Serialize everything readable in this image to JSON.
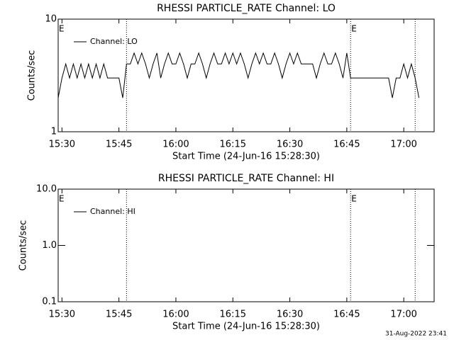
{
  "chart_data": [
    {
      "type": "line",
      "title": "RHESSI PARTICLE_RATE Channel: LO",
      "xlabel": "Start Time (24-Jun-16 15:28:30)",
      "ylabel": "Counts/sec",
      "x": [
        "15:29",
        "15:30",
        "15:31",
        "15:32",
        "15:33",
        "15:34",
        "15:35",
        "15:36",
        "15:37",
        "15:38",
        "15:39",
        "15:40",
        "15:41",
        "15:42",
        "15:43",
        "15:44",
        "15:45",
        "15:46",
        "15:47",
        "15:48",
        "15:49",
        "15:50",
        "15:51",
        "15:52",
        "15:53",
        "15:54",
        "15:55",
        "15:56",
        "15:57",
        "15:58",
        "15:59",
        "16:00",
        "16:01",
        "16:02",
        "16:03",
        "16:04",
        "16:05",
        "16:06",
        "16:07",
        "16:08",
        "16:09",
        "16:10",
        "16:11",
        "16:12",
        "16:13",
        "16:14",
        "16:15",
        "16:16",
        "16:17",
        "16:18",
        "16:19",
        "16:20",
        "16:21",
        "16:22",
        "16:23",
        "16:24",
        "16:25",
        "16:26",
        "16:27",
        "16:28",
        "16:29",
        "16:30",
        "16:31",
        "16:32",
        "16:33",
        "16:34",
        "16:35",
        "16:36",
        "16:37",
        "16:38",
        "16:39",
        "16:40",
        "16:41",
        "16:42",
        "16:43",
        "16:44",
        "16:45",
        "16:46",
        "16:47",
        "16:48",
        "16:49",
        "16:50",
        "16:51",
        "16:52",
        "16:53",
        "16:54",
        "16:55",
        "16:56",
        "16:57",
        "16:58",
        "16:59",
        "17:00",
        "17:01",
        "17:02",
        "17:03",
        "17:04"
      ],
      "series": [
        {
          "name": "Channel: LO",
          "color": "#000000",
          "values": [
            2,
            3,
            4,
            3,
            4,
            3,
            4,
            3,
            4,
            3,
            4,
            3,
            4,
            3,
            3,
            3,
            3,
            2,
            4,
            4,
            5,
            4,
            5,
            4,
            3,
            4,
            5,
            3,
            4,
            5,
            4,
            4,
            5,
            4,
            3,
            4,
            4,
            5,
            4,
            3,
            4,
            5,
            4,
            4,
            5,
            4,
            5,
            4,
            5,
            4,
            3,
            4,
            5,
            4,
            5,
            4,
            4,
            5,
            4,
            3,
            4,
            5,
            4,
            5,
            4,
            4,
            4,
            4,
            3,
            4,
            5,
            4,
            4,
            5,
            4,
            3,
            5,
            3,
            3,
            3,
            3,
            3,
            3,
            3,
            3,
            3,
            3,
            3,
            2,
            3,
            3,
            4,
            3,
            4,
            3,
            2
          ]
        }
      ],
      "xlim": [
        "15:29",
        "17:08"
      ],
      "xticks": [
        "15:30",
        "15:45",
        "16:00",
        "16:15",
        "16:30",
        "16:45",
        "17:00"
      ],
      "ylim": [
        1,
        10
      ],
      "yticks": [
        1,
        10
      ],
      "log_y": true,
      "events": [
        "15:47",
        "16:46",
        "17:03"
      ],
      "annotations": [
        {
          "x": "15:29",
          "label": "E"
        },
        {
          "x": "16:46",
          "label": "E"
        }
      ]
    },
    {
      "type": "line",
      "title": "RHESSI PARTICLE_RATE Channel: HI",
      "xlabel": "Start Time (24-Jun-16 15:28:30)",
      "ylabel": "Counts/sec",
      "x": [],
      "series": [
        {
          "name": "Channel: HI",
          "color": "#000000",
          "values": []
        }
      ],
      "xlim": [
        "15:29",
        "17:08"
      ],
      "xticks": [
        "15:30",
        "15:45",
        "16:00",
        "16:15",
        "16:30",
        "16:45",
        "17:00"
      ],
      "ylim": [
        0.1,
        10
      ],
      "yticks": [
        0.1,
        {
          "value": 1,
          "label": "1.0"
        },
        {
          "value": 10,
          "label": "10.0"
        }
      ],
      "log_y": true,
      "events": [
        "15:47",
        "16:46",
        "17:03"
      ],
      "annotations": [
        {
          "x": "15:29",
          "label": "E"
        },
        {
          "x": "16:46",
          "label": "E"
        }
      ]
    }
  ],
  "footer": "31-Aug-2022 23:41"
}
